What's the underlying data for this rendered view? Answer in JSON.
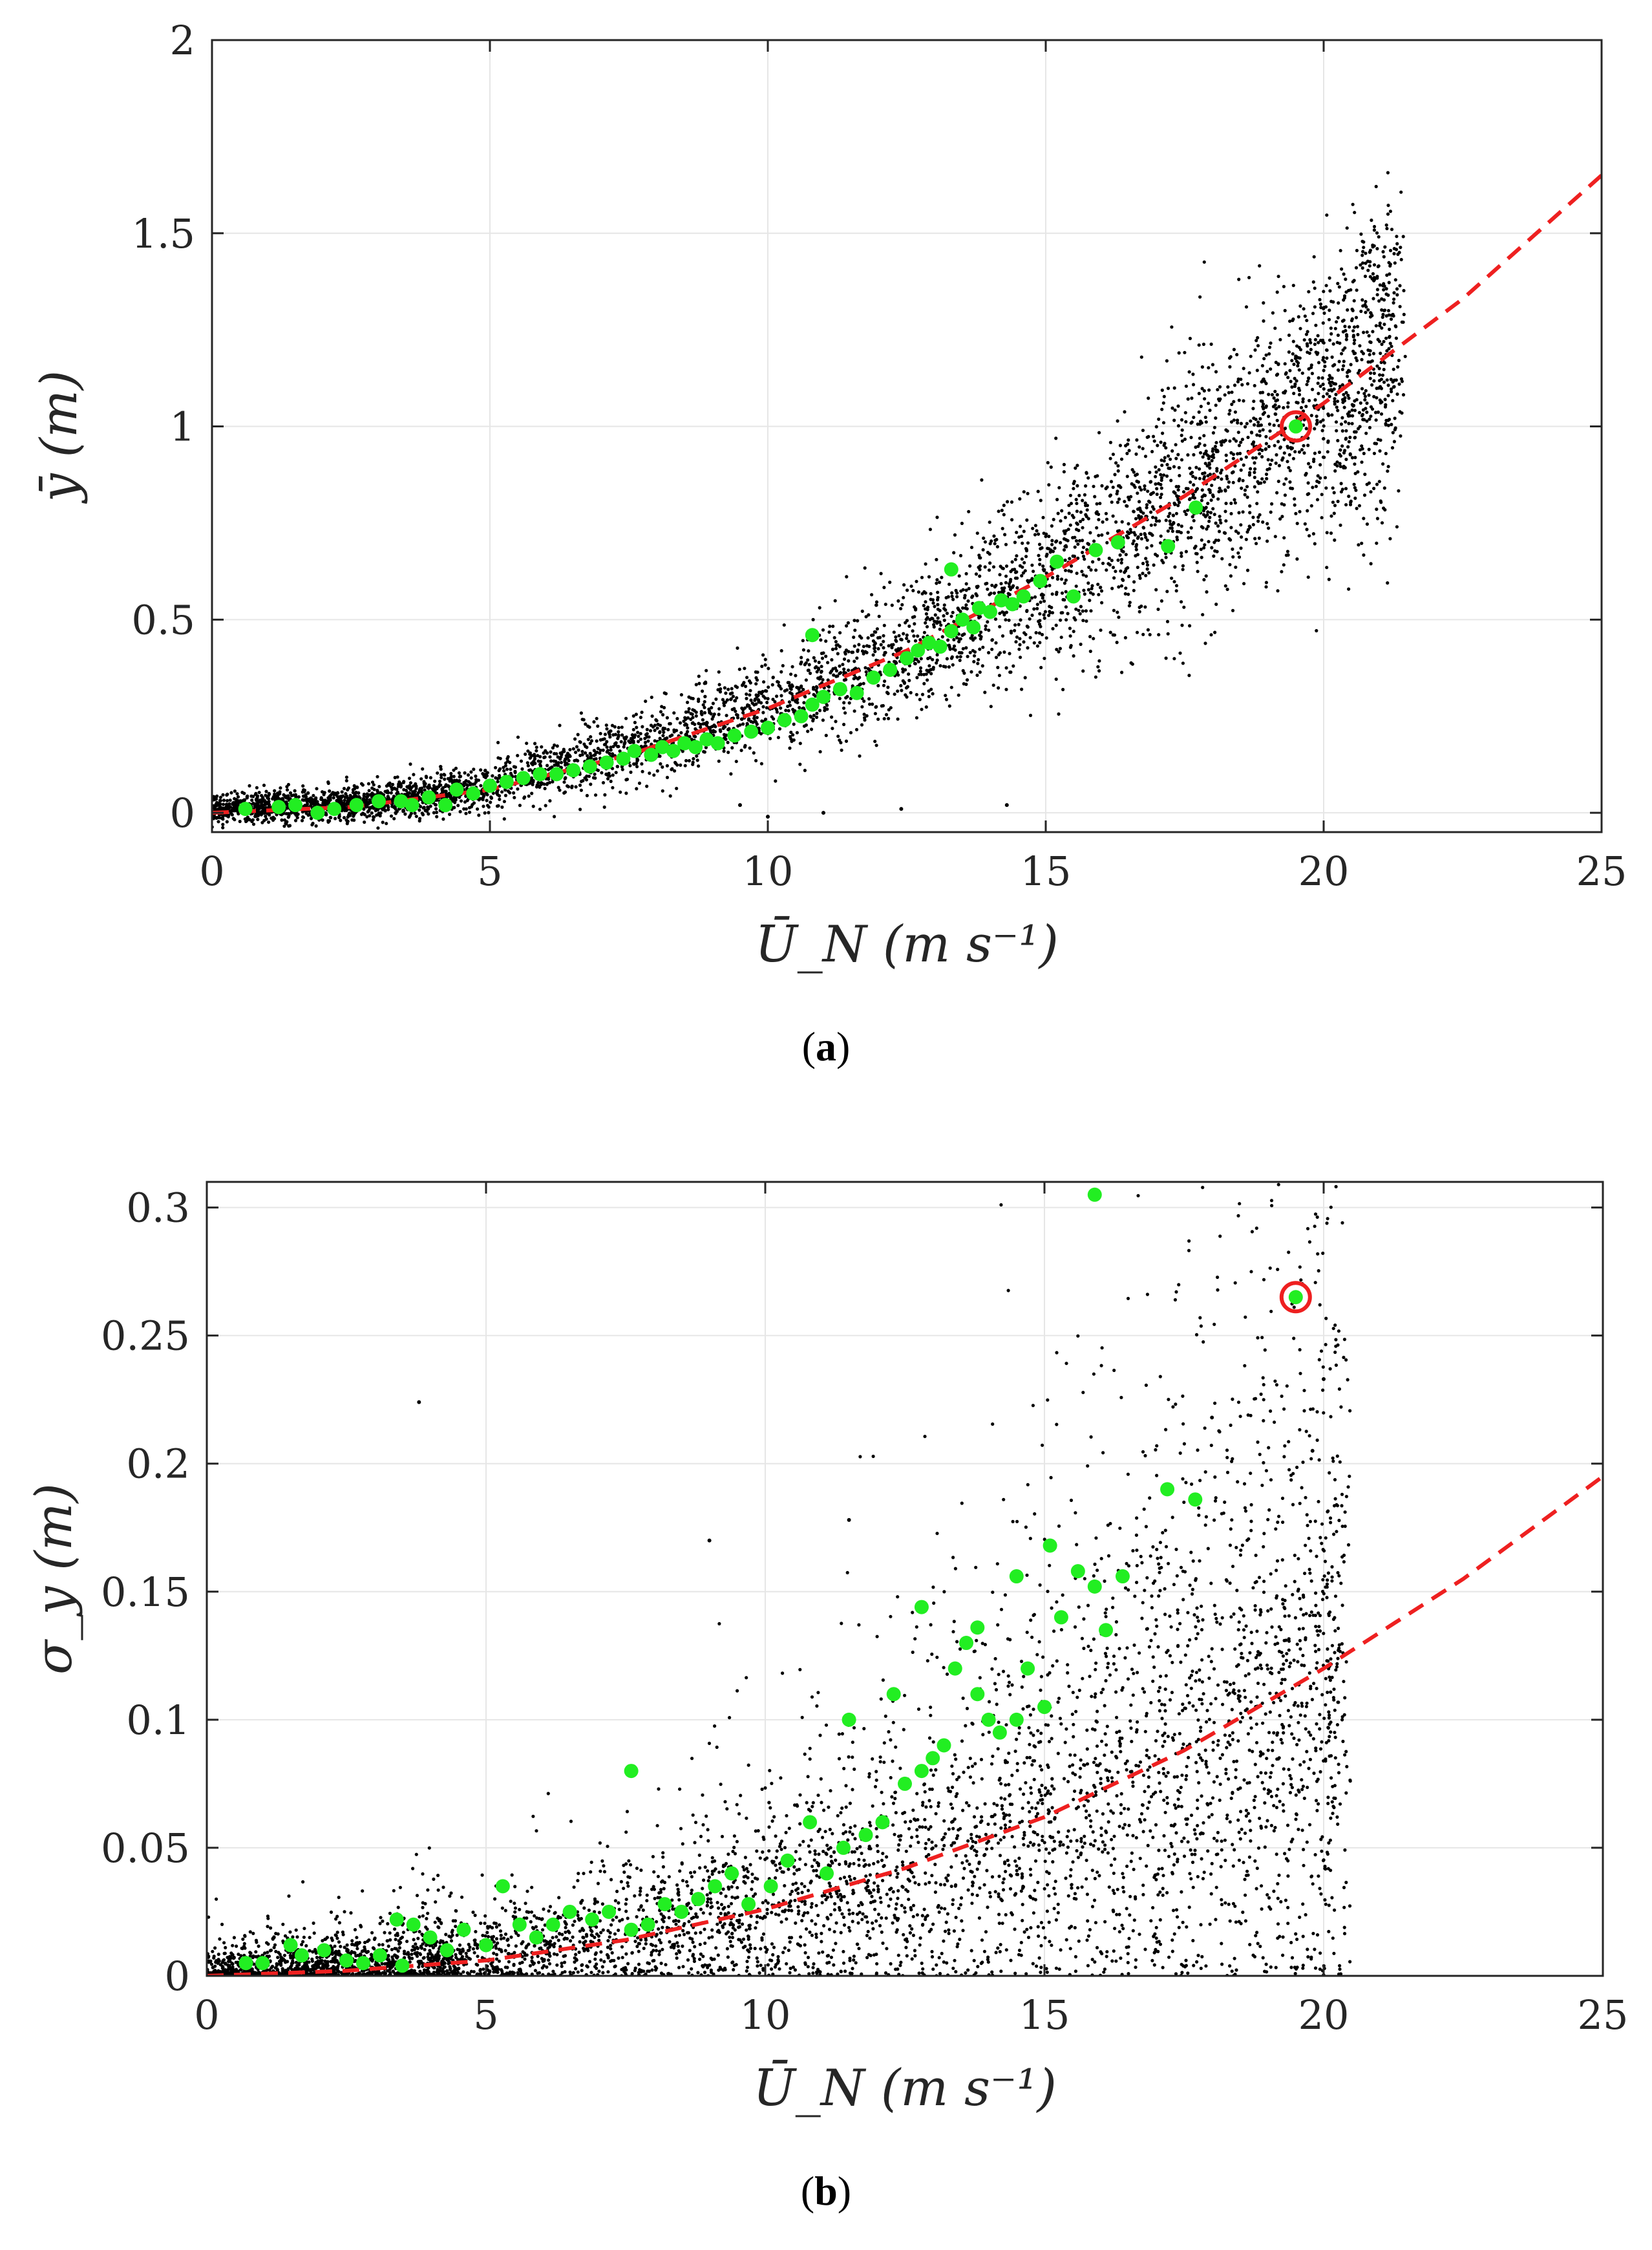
{
  "figure": {
    "label_a": "a",
    "label_b": "b"
  },
  "colors": {
    "scatter": "#000000",
    "highlight_points": "#22ee22",
    "fit_line": "#ee2020",
    "marked_circle": "#ee2020",
    "grid": "#e6e6e6",
    "axes": "#262626"
  },
  "chart_data": [
    {
      "id": "a",
      "type": "scatter",
      "xlabel": "Ū_N (m s⁻¹)",
      "ylabel": "ȳ (m)",
      "xlim": [
        0,
        25
      ],
      "ylim": [
        -0.05,
        2
      ],
      "xticks": [
        0,
        5,
        10,
        15,
        20,
        25
      ],
      "yticks": [
        0,
        0.5,
        1,
        1.5,
        2
      ],
      "xtick_labels": [
        "0",
        "5",
        "10",
        "15",
        "20",
        "25"
      ],
      "ytick_labels": [
        "0",
        "0.5",
        "1",
        "1.5",
        "2"
      ],
      "grid": true,
      "fit_curve": {
        "style": "dashed",
        "description": "quadratic fit",
        "x": [
          0,
          2.5,
          5,
          7.5,
          10,
          12.5,
          15,
          17.5,
          20,
          22.5,
          25
        ],
        "y": [
          0,
          0.015,
          0.06,
          0.15,
          0.27,
          0.42,
          0.61,
          0.82,
          1.06,
          1.33,
          1.65
        ]
      },
      "highlight_series": {
        "name": "green points",
        "x": [
          0.6,
          1.2,
          1.5,
          1.9,
          2.2,
          2.6,
          3.0,
          3.4,
          3.6,
          3.9,
          4.2,
          4.4,
          4.7,
          5.0,
          5.3,
          5.6,
          5.9,
          6.2,
          6.5,
          6.8,
          7.1,
          7.4,
          7.6,
          7.9,
          8.1,
          8.3,
          8.5,
          8.7,
          8.9,
          9.1,
          9.4,
          9.7,
          10.0,
          10.3,
          10.6,
          10.8,
          11.0,
          11.3,
          11.6,
          11.9,
          12.2,
          12.5,
          12.7,
          12.9,
          13.1,
          13.3,
          13.5,
          13.7,
          13.8,
          14.0,
          14.2,
          14.4,
          14.6,
          14.9,
          15.2,
          15.5,
          15.9,
          16.3,
          17.2,
          17.7,
          10.8,
          13.3
        ],
        "y": [
          0.01,
          0.015,
          0.02,
          0.0,
          0.01,
          0.02,
          0.03,
          0.03,
          0.02,
          0.04,
          0.02,
          0.06,
          0.05,
          0.07,
          0.08,
          0.09,
          0.1,
          0.1,
          0.11,
          0.12,
          0.13,
          0.14,
          0.16,
          0.15,
          0.17,
          0.16,
          0.18,
          0.17,
          0.19,
          0.18,
          0.2,
          0.21,
          0.22,
          0.24,
          0.25,
          0.28,
          0.3,
          0.32,
          0.31,
          0.35,
          0.37,
          0.4,
          0.42,
          0.44,
          0.43,
          0.47,
          0.5,
          0.48,
          0.53,
          0.52,
          0.55,
          0.54,
          0.56,
          0.6,
          0.65,
          0.56,
          0.68,
          0.7,
          0.69,
          0.79,
          0.46,
          0.63
        ]
      },
      "marked_point": {
        "x": 19.5,
        "y": 1.0
      },
      "scatter_model": {
        "n": 5200,
        "x_max": 21.5,
        "spread_fraction": 0.3,
        "outliers": [
          [
            9.5,
            0.02
          ],
          [
            11.0,
            0.0
          ],
          [
            14.3,
            0.02
          ],
          [
            12.4,
            0.01
          ],
          [
            10.0,
            -0.01
          ]
        ]
      }
    },
    {
      "id": "b",
      "type": "scatter",
      "xlabel": "Ū_N (m s⁻¹)",
      "ylabel": "σ_y (m)",
      "xlim": [
        0,
        25
      ],
      "ylim": [
        0,
        0.31
      ],
      "xticks": [
        0,
        5,
        10,
        15,
        20,
        25
      ],
      "yticks": [
        0,
        0.05,
        0.1,
        0.15,
        0.2,
        0.25,
        0.3
      ],
      "xtick_labels": [
        "0",
        "5",
        "10",
        "15",
        "20",
        "25"
      ],
      "ytick_labels": [
        "0",
        "0.05",
        "0.1",
        "0.15",
        "0.2",
        "0.25",
        "0.3"
      ],
      "grid": true,
      "fit_curve": {
        "style": "dashed",
        "description": "power-law fit",
        "x": [
          0,
          2.5,
          5,
          7.5,
          10,
          12.5,
          15,
          17.5,
          20,
          22.5,
          25
        ],
        "y": [
          0,
          0.002,
          0.006,
          0.014,
          0.026,
          0.042,
          0.062,
          0.088,
          0.12,
          0.155,
          0.195
        ]
      },
      "highlight_series": {
        "name": "green points",
        "x": [
          0.7,
          1.0,
          1.5,
          1.7,
          2.1,
          2.5,
          2.8,
          3.1,
          3.4,
          3.5,
          3.7,
          4.0,
          4.3,
          4.6,
          5.0,
          5.3,
          5.6,
          5.9,
          6.2,
          6.5,
          6.9,
          7.2,
          7.6,
          7.9,
          8.2,
          8.5,
          8.8,
          9.1,
          9.4,
          9.7,
          10.1,
          10.4,
          10.8,
          11.1,
          11.4,
          11.8,
          12.1,
          12.3,
          12.5,
          12.8,
          13.0,
          13.2,
          13.4,
          13.6,
          13.8,
          14.0,
          14.2,
          14.5,
          14.7,
          15.0,
          15.3,
          15.6,
          15.9,
          16.1,
          16.4,
          17.2,
          17.7,
          15.9,
          7.6,
          11.5,
          12.8,
          13.8,
          14.5,
          15.1
        ],
        "y": [
          0.005,
          0.005,
          0.012,
          0.008,
          0.01,
          0.006,
          0.005,
          0.008,
          0.022,
          0.004,
          0.02,
          0.015,
          0.01,
          0.018,
          0.012,
          0.035,
          0.02,
          0.015,
          0.02,
          0.025,
          0.022,
          0.025,
          0.018,
          0.02,
          0.028,
          0.025,
          0.03,
          0.035,
          0.04,
          0.028,
          0.035,
          0.045,
          0.06,
          0.04,
          0.05,
          0.055,
          0.06,
          0.11,
          0.075,
          0.08,
          0.085,
          0.09,
          0.12,
          0.13,
          0.11,
          0.1,
          0.095,
          0.1,
          0.12,
          0.105,
          0.14,
          0.158,
          0.152,
          0.135,
          0.156,
          0.19,
          0.186,
          0.305,
          0.08,
          0.1,
          0.144,
          0.136,
          0.156,
          0.168
        ]
      },
      "marked_point": {
        "x": 19.5,
        "y": 0.265
      },
      "scatter_model": {
        "n": 5200,
        "x_max": 20.5,
        "spread_fraction": 0.55,
        "outliers": [
          [
            3.8,
            0.224
          ],
          [
            9.0,
            0.17
          ],
          [
            11.5,
            0.178
          ],
          [
            18.0,
            0.218
          ],
          [
            20.0,
            0.233
          ],
          [
            19.8,
            0.205
          ]
        ]
      }
    }
  ]
}
